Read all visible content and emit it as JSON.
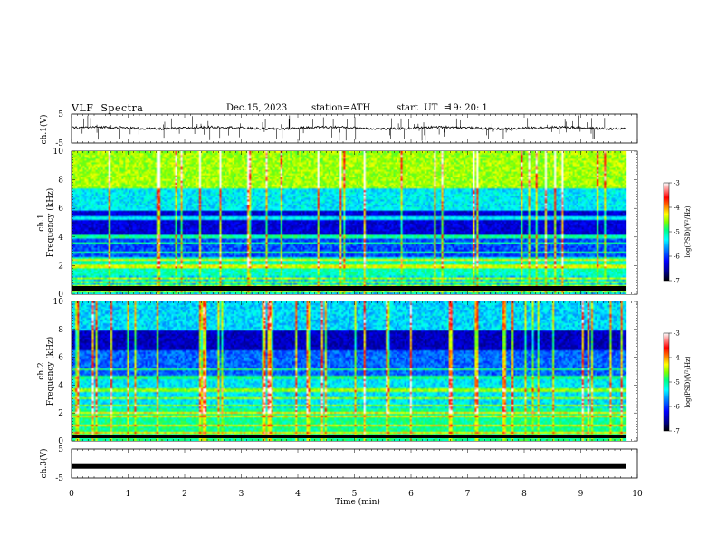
{
  "header": {
    "title": "VLF  Spectra",
    "date": "Dec.15, 2023",
    "station": "station=ATH",
    "start_label": "start  UT  =",
    "start_time": "19: 20: 1"
  },
  "chart_data": [
    {
      "type": "line",
      "name": "ch1-waveform",
      "ylabel": "ch.1(V)",
      "ylim": [
        -5,
        5
      ],
      "yticks": [
        "5",
        "-5"
      ],
      "xlim": [
        0,
        10
      ],
      "baseline": 0.2,
      "noise": 0.4,
      "spikes": "frequent"
    },
    {
      "type": "heatmap",
      "name": "ch1-spectrogram",
      "ylabel_channel": "ch.1",
      "ylabel": "Frequency  (kHz)",
      "ylim": [
        0,
        10
      ],
      "yticks": [
        "0",
        "2",
        "4",
        "6",
        "8",
        "10"
      ],
      "xlim": [
        0,
        9.8
      ],
      "colorbar": {
        "label": "log(PSD)(V²/Hz)",
        "range": [
          -7,
          -3
        ],
        "ticks": [
          "-3",
          "-4",
          "-5",
          "-6",
          "-7"
        ]
      },
      "bands_khz": [
        0.3,
        0.6,
        0.9,
        1.2,
        2.0,
        2.5,
        3.0,
        3.6,
        4.1,
        5.4,
        6.0
      ]
    },
    {
      "type": "heatmap",
      "name": "ch2-spectrogram",
      "ylabel_channel": "ch.2",
      "ylabel": "Frequency  (kHz)",
      "ylim": [
        0,
        10
      ],
      "yticks": [
        "0",
        "2",
        "4",
        "6",
        "8",
        "10"
      ],
      "xlim": [
        0,
        9.8
      ],
      "colorbar": {
        "label": "log(PSD)(V²/Hz)",
        "range": [
          -7,
          -3
        ],
        "ticks": [
          "-3",
          "-4",
          "-5",
          "-6",
          "-7"
        ]
      },
      "bands_khz": [
        0.6,
        1.2,
        1.8,
        2.1,
        2.6,
        3.1,
        3.7,
        4.6,
        5.2
      ]
    },
    {
      "type": "line",
      "name": "ch3-waveform",
      "ylabel": "ch.3(V)",
      "ylim": [
        -5,
        5
      ],
      "yticks": [
        "5",
        "-5"
      ],
      "xlim": [
        0,
        10
      ],
      "baseline": -1.0,
      "noise": 0.05,
      "spikes": "none"
    }
  ],
  "x_axis": {
    "label": "Time  (min)",
    "ticks": [
      "0",
      "1",
      "2",
      "3",
      "4",
      "5",
      "6",
      "7",
      "8",
      "9",
      "10"
    ],
    "range": [
      0,
      10
    ]
  },
  "colors": {
    "scale": [
      "#000000",
      "#000080",
      "#0000ff",
      "#0080ff",
      "#00ffff",
      "#00ff80",
      "#80ff00",
      "#ffff00",
      "#ff8000",
      "#ff0000",
      "#ffffff"
    ]
  }
}
